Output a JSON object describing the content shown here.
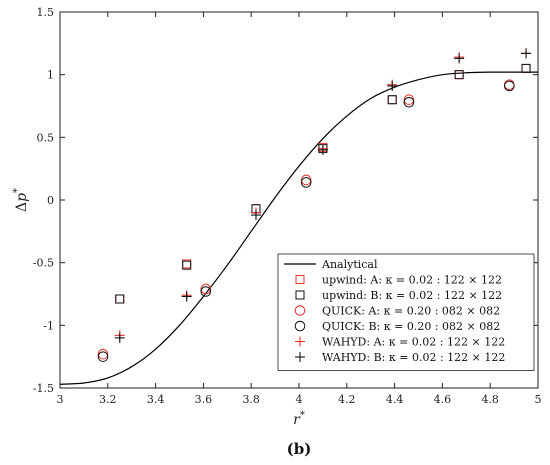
{
  "chart_data": {
    "type": "scatter",
    "xlabel": "r*",
    "ylabel": "Δp*",
    "xlim": [
      3,
      5
    ],
    "ylim": [
      -1.5,
      1.5
    ],
    "xticks": [
      3,
      3.2,
      3.4,
      3.6,
      3.8,
      4,
      4.2,
      4.4,
      4.6,
      4.8,
      5
    ],
    "xtick_labels": [
      "3",
      "3.2",
      "3.4",
      "3.6",
      "3.8",
      "4",
      "4.2",
      "4.4",
      "4.6",
      "4.8",
      "5"
    ],
    "yticks": [
      -1.5,
      -1,
      -0.5,
      0,
      0.5,
      1,
      1.5
    ],
    "ytick_labels": [
      "-1.5",
      "-1",
      "-0.5",
      "0",
      "0.5",
      "1",
      "1.5"
    ],
    "grid": false,
    "legend_position": "bottom-right",
    "panel_label": "(b)",
    "analytical": {
      "name": "Analytical",
      "color": "#000000",
      "x": [
        3.0,
        3.1,
        3.2,
        3.3,
        3.4,
        3.5,
        3.6,
        3.7,
        3.8,
        3.9,
        4.0,
        4.1,
        4.2,
        4.3,
        4.4,
        4.5,
        4.6,
        4.7,
        4.8,
        4.9,
        5.0
      ],
      "y": [
        -1.47,
        -1.46,
        -1.42,
        -1.33,
        -1.19,
        -1.0,
        -0.77,
        -0.52,
        -0.25,
        0.02,
        0.27,
        0.49,
        0.67,
        0.81,
        0.9,
        0.96,
        1.0,
        1.015,
        1.02,
        1.02,
        1.02
      ]
    },
    "series": [
      {
        "name": "upwind: A: κ = 0.02 : 122 × 122",
        "marker": "square",
        "color": "#e8322a",
        "x": [
          3.25,
          3.53,
          3.82,
          4.1,
          4.39,
          4.67,
          4.95
        ],
        "y": [
          -0.79,
          -0.51,
          -0.07,
          0.42,
          0.8,
          1.0,
          1.05
        ]
      },
      {
        "name": "upwind: B: κ = 0.02 : 122 × 122",
        "marker": "square",
        "color": "#111111",
        "x": [
          3.25,
          3.53,
          3.82,
          4.1,
          4.39,
          4.67,
          4.95
        ],
        "y": [
          -0.79,
          -0.52,
          -0.07,
          0.41,
          0.8,
          1.0,
          1.05
        ]
      },
      {
        "name": "QUICK: A: κ = 0.20 : 082 × 082",
        "marker": "circle",
        "color": "#e8322a",
        "x": [
          3.18,
          3.61,
          4.03,
          4.46,
          4.88
        ],
        "y": [
          -1.23,
          -0.71,
          0.16,
          0.8,
          0.92
        ]
      },
      {
        "name": "QUICK: B: κ = 0.20 : 082 × 082",
        "marker": "circle",
        "color": "#111111",
        "x": [
          3.18,
          3.61,
          4.03,
          4.46,
          4.88
        ],
        "y": [
          -1.25,
          -0.73,
          0.14,
          0.78,
          0.91
        ]
      },
      {
        "name": "WAHYD: A: κ = 0.02 : 122 × 122",
        "marker": "plus",
        "color": "#e8322a",
        "x": [
          3.25,
          3.53,
          3.82,
          4.1,
          4.39,
          4.67,
          4.95
        ],
        "y": [
          -1.08,
          -0.76,
          -0.1,
          0.41,
          0.92,
          1.14,
          1.17
        ]
      },
      {
        "name": "WAHYD: B: κ = 0.02 : 122 × 122",
        "marker": "plus",
        "color": "#111111",
        "x": [
          3.25,
          3.53,
          3.82,
          4.1,
          4.39,
          4.67,
          4.95
        ],
        "y": [
          -1.1,
          -0.77,
          -0.12,
          0.4,
          0.91,
          1.13,
          1.17
        ]
      }
    ]
  }
}
